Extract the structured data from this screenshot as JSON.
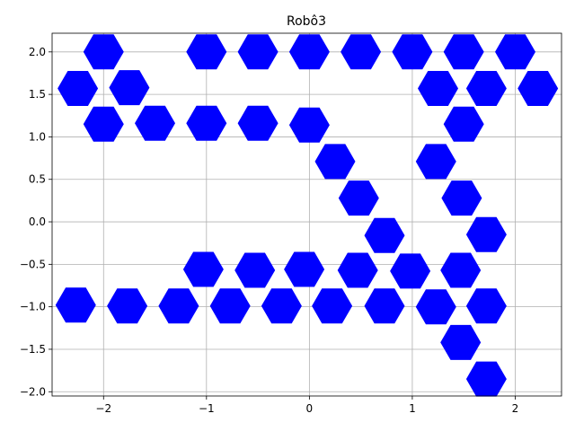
{
  "chart_data": {
    "type": "scatter",
    "title": "Robô3",
    "xlabel": "",
    "ylabel": "",
    "xlim": [
      -2.5,
      2.45
    ],
    "ylim": [
      -2.05,
      2.22
    ],
    "xticks": [
      -2,
      -1,
      0,
      1,
      2
    ],
    "xtick_labels": [
      "−2",
      "−1",
      "0",
      "1",
      "2"
    ],
    "yticks": [
      -2.0,
      -1.5,
      -1.0,
      -0.5,
      0.0,
      0.5,
      1.0,
      1.5,
      2.0
    ],
    "ytick_labels": [
      "−2.0",
      "−1.5",
      "−1.0",
      "−0.5",
      "0.0",
      "0.5",
      "1.0",
      "1.5",
      "2.0"
    ],
    "grid": true,
    "marker": "hexagon",
    "color": "#0000ff",
    "points": [
      [
        -2.0,
        2.0
      ],
      [
        -1.0,
        2.0
      ],
      [
        -0.5,
        2.0
      ],
      [
        0.0,
        2.0
      ],
      [
        0.5,
        2.0
      ],
      [
        1.0,
        2.0
      ],
      [
        1.5,
        2.0
      ],
      [
        2.0,
        2.0
      ],
      [
        -2.25,
        1.57
      ],
      [
        -1.75,
        1.58
      ],
      [
        1.25,
        1.57
      ],
      [
        1.72,
        1.57
      ],
      [
        2.22,
        1.57
      ],
      [
        -2.0,
        1.15
      ],
      [
        -1.5,
        1.16
      ],
      [
        -1.0,
        1.16
      ],
      [
        -0.5,
        1.16
      ],
      [
        0.0,
        1.14
      ],
      [
        1.5,
        1.15
      ],
      [
        0.25,
        0.71
      ],
      [
        1.23,
        0.71
      ],
      [
        0.48,
        0.28
      ],
      [
        1.48,
        0.28
      ],
      [
        0.73,
        -0.16
      ],
      [
        1.72,
        -0.15
      ],
      [
        -1.03,
        -0.56
      ],
      [
        -0.53,
        -0.57
      ],
      [
        -0.05,
        -0.56
      ],
      [
        0.47,
        -0.57
      ],
      [
        0.98,
        -0.58
      ],
      [
        1.47,
        -0.57
      ],
      [
        -2.27,
        -0.98
      ],
      [
        -1.77,
        -0.99
      ],
      [
        -1.27,
        -0.99
      ],
      [
        -0.77,
        -0.99
      ],
      [
        -0.27,
        -0.99
      ],
      [
        0.22,
        -0.99
      ],
      [
        0.73,
        -0.99
      ],
      [
        1.23,
        -1.0
      ],
      [
        1.72,
        -0.99
      ],
      [
        1.47,
        -1.42
      ],
      [
        1.72,
        -1.85
      ]
    ]
  }
}
